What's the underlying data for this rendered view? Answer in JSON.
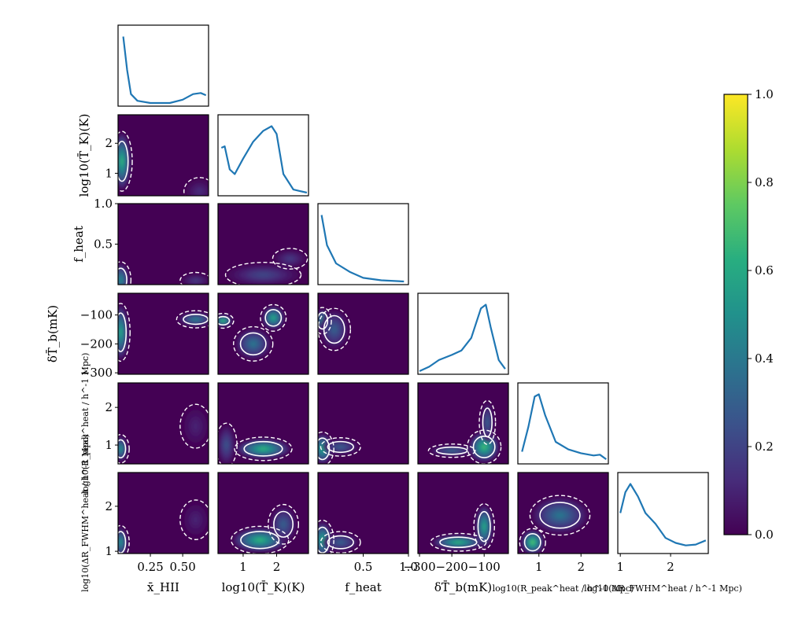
{
  "chart_data": {
    "type": "corner",
    "parameters": [
      {
        "key": "xHII",
        "label": "x̄_HII",
        "range": [
          0,
          0.7
        ],
        "ticks": [
          0.25,
          0.5
        ],
        "tick_labels": [
          "0.25",
          "0.50"
        ]
      },
      {
        "key": "TK",
        "label": "log10(T̄_K)(K)",
        "range": [
          0.25,
          2.95
        ],
        "ticks": [
          1,
          2
        ],
        "tick_labels": [
          "1",
          "2"
        ]
      },
      {
        "key": "fheat",
        "label": "f_heat",
        "range": [
          0,
          1
        ],
        "ticks": [
          0.5,
          1.0
        ],
        "tick_labels": [
          "0.5",
          "1.0"
        ]
      },
      {
        "key": "dTb",
        "label": "δT̄_b(mK)",
        "range": [
          -305,
          -25
        ],
        "ticks": [
          -300,
          -200,
          -100
        ],
        "tick_labels": [
          "−300",
          "−200",
          "−100"
        ]
      },
      {
        "key": "Rpeak",
        "label": "log10(R_peak^heat / h^-1 Mpc)",
        "range": [
          0.5,
          2.65
        ],
        "ticks": [
          1,
          2
        ],
        "tick_labels": [
          "1",
          "2"
        ]
      },
      {
        "key": "dRfwhm",
        "label": "log10(ΔR_FWHM^heat / h^-1 Mpc)",
        "range": [
          0.95,
          2.75
        ],
        "ticks": [
          1,
          2
        ],
        "tick_labels": [
          "1",
          "2"
        ]
      }
    ],
    "y_axis_labels": {
      "TK": "log10(T̄_K)(K)",
      "fheat": "f_heat",
      "dTb": "δT̄_b(mK)",
      "Rpeak": "log10(R_peak^heat / h^-1 Mpc)",
      "dRfwhm": "log10(ΔR_FWHM^heat / h^-1 Mpc)"
    },
    "y_tick_labels": {
      "TK": [
        "1",
        "2"
      ],
      "fheat": [
        "0.5",
        "1.0"
      ],
      "dTb": [
        "−300",
        "−200",
        "−100"
      ],
      "Rpeak": [
        "1",
        "2"
      ],
      "dRfwhm": [
        "1",
        "2"
      ]
    },
    "marginals": {
      "xHII": [
        [
          0.04,
          0.6
        ],
        [
          0.07,
          0.3
        ],
        [
          0.1,
          0.08
        ],
        [
          0.15,
          0.02
        ],
        [
          0.25,
          0.0
        ],
        [
          0.4,
          0.0
        ],
        [
          0.5,
          0.03
        ],
        [
          0.58,
          0.08
        ],
        [
          0.64,
          0.09
        ],
        [
          0.68,
          0.07
        ]
      ],
      "TK": [
        [
          0.35,
          0.29
        ],
        [
          0.45,
          0.3
        ],
        [
          0.6,
          0.15
        ],
        [
          0.75,
          0.12
        ],
        [
          1.0,
          0.22
        ],
        [
          1.3,
          0.33
        ],
        [
          1.6,
          0.4
        ],
        [
          1.85,
          0.43
        ],
        [
          2.0,
          0.38
        ],
        [
          2.2,
          0.12
        ],
        [
          2.5,
          0.02
        ],
        [
          2.9,
          0.0
        ]
      ],
      "fheat": [
        [
          0.04,
          0.55
        ],
        [
          0.1,
          0.3
        ],
        [
          0.2,
          0.15
        ],
        [
          0.35,
          0.08
        ],
        [
          0.5,
          0.03
        ],
        [
          0.7,
          0.01
        ],
        [
          0.95,
          0.0
        ]
      ],
      "dTb": [
        [
          -300,
          0.0
        ],
        [
          -270,
          0.06
        ],
        [
          -240,
          0.15
        ],
        [
          -200,
          0.22
        ],
        [
          -170,
          0.28
        ],
        [
          -140,
          0.45
        ],
        [
          -110,
          0.85
        ],
        [
          -95,
          0.9
        ],
        [
          -80,
          0.6
        ],
        [
          -55,
          0.15
        ],
        [
          -35,
          0.03
        ]
      ],
      "Rpeak": [
        [
          0.6,
          0.12
        ],
        [
          0.75,
          0.45
        ],
        [
          0.9,
          0.85
        ],
        [
          1.0,
          0.88
        ],
        [
          1.15,
          0.6
        ],
        [
          1.4,
          0.25
        ],
        [
          1.7,
          0.15
        ],
        [
          2.0,
          0.1
        ],
        [
          2.3,
          0.07
        ],
        [
          2.45,
          0.08
        ],
        [
          2.6,
          0.02
        ]
      ],
      "dRfwhm": [
        [
          1.0,
          0.45
        ],
        [
          1.1,
          0.7
        ],
        [
          1.2,
          0.8
        ],
        [
          1.35,
          0.65
        ],
        [
          1.5,
          0.45
        ],
        [
          1.7,
          0.32
        ],
        [
          1.9,
          0.15
        ],
        [
          2.1,
          0.09
        ],
        [
          2.3,
          0.06
        ],
        [
          2.5,
          0.07
        ],
        [
          2.7,
          0.12
        ]
      ]
    },
    "joint_peaks": [
      {
        "x": "xHII",
        "y": "TK",
        "blobs": [
          {
            "cx": 0.03,
            "cy": 1.4,
            "sx": 0.05,
            "sy": 0.7,
            "a": 0.75
          },
          {
            "cx": 0.63,
            "cy": 0.4,
            "sx": 0.08,
            "sy": 0.3,
            "a": 0.15
          }
        ]
      },
      {
        "x": "xHII",
        "y": "fheat",
        "blobs": [
          {
            "cx": 0.02,
            "cy": 0.06,
            "sx": 0.05,
            "sy": 0.15,
            "a": 0.55
          },
          {
            "cx": 0.6,
            "cy": 0.05,
            "sx": 0.08,
            "sy": 0.06,
            "a": 0.2
          }
        ]
      },
      {
        "x": "TK",
        "y": "fheat",
        "blobs": [
          {
            "cx": 1.6,
            "cy": 0.12,
            "sx": 0.8,
            "sy": 0.1,
            "a": 0.25
          },
          {
            "cx": 2.4,
            "cy": 0.32,
            "sx": 0.35,
            "sy": 0.08,
            "a": 0.2
          }
        ]
      },
      {
        "x": "fheat",
        "y": "fheat",
        "blobs": []
      },
      {
        "x": "xHII",
        "y": "dTb",
        "blobs": [
          {
            "cx": 0.02,
            "cy": -160,
            "sx": 0.045,
            "sy": 70,
            "a": 0.7
          },
          {
            "cx": 0.6,
            "cy": -115,
            "sx": 0.1,
            "sy": 18,
            "a": 0.5
          }
        ]
      },
      {
        "x": "TK",
        "y": "dTb",
        "blobs": [
          {
            "cx": 0.4,
            "cy": -120,
            "sx": 0.2,
            "sy": 15,
            "a": 0.8
          },
          {
            "cx": 1.9,
            "cy": -110,
            "sx": 0.25,
            "sy": 30,
            "a": 0.7
          },
          {
            "cx": 1.3,
            "cy": -200,
            "sx": 0.4,
            "sy": 40,
            "a": 0.45
          }
        ]
      },
      {
        "x": "fheat",
        "y": "dTb",
        "blobs": [
          {
            "cx": 0.05,
            "cy": -120,
            "sx": 0.06,
            "sy": 30,
            "a": 0.6
          },
          {
            "cx": 0.18,
            "cy": -150,
            "sx": 0.12,
            "sy": 50,
            "a": 0.35
          }
        ]
      },
      {
        "x": "xHII",
        "y": "Rpeak",
        "blobs": [
          {
            "cx": 0.02,
            "cy": 0.9,
            "sx": 0.04,
            "sy": 0.25,
            "a": 0.6
          },
          {
            "cx": 0.6,
            "cy": 1.5,
            "sx": 0.08,
            "sy": 0.4,
            "a": 0.12
          }
        ]
      },
      {
        "x": "TK",
        "y": "Rpeak",
        "blobs": [
          {
            "cx": 1.6,
            "cy": 0.9,
            "sx": 0.6,
            "sy": 0.2,
            "a": 0.75
          },
          {
            "cx": 0.5,
            "cy": 1.0,
            "sx": 0.2,
            "sy": 0.4,
            "a": 0.3
          }
        ]
      },
      {
        "x": "fheat",
        "y": "Rpeak",
        "blobs": [
          {
            "cx": 0.05,
            "cy": 0.9,
            "sx": 0.08,
            "sy": 0.3,
            "a": 0.7
          },
          {
            "cx": 0.25,
            "cy": 0.95,
            "sx": 0.15,
            "sy": 0.15,
            "a": 0.35
          }
        ]
      },
      {
        "x": "dTb",
        "y": "Rpeak",
        "blobs": [
          {
            "cx": -100,
            "cy": 0.95,
            "sx": 35,
            "sy": 0.3,
            "a": 0.8
          },
          {
            "cx": -200,
            "cy": 0.85,
            "sx": 50,
            "sy": 0.1,
            "a": 0.4
          },
          {
            "cx": -90,
            "cy": 1.6,
            "sx": 15,
            "sy": 0.4,
            "a": 0.35
          }
        ]
      },
      {
        "x": "xHII",
        "y": "dRfwhm",
        "blobs": [
          {
            "cx": 0.02,
            "cy": 1.2,
            "sx": 0.04,
            "sy": 0.25,
            "a": 0.6
          },
          {
            "cx": 0.6,
            "cy": 1.7,
            "sx": 0.08,
            "sy": 0.3,
            "a": 0.12
          }
        ]
      },
      {
        "x": "TK",
        "y": "dRfwhm",
        "blobs": [
          {
            "cx": 1.5,
            "cy": 1.25,
            "sx": 0.6,
            "sy": 0.2,
            "a": 0.75
          },
          {
            "cx": 2.2,
            "cy": 1.6,
            "sx": 0.3,
            "sy": 0.3,
            "a": 0.35
          }
        ]
      },
      {
        "x": "fheat",
        "y": "dRfwhm",
        "blobs": [
          {
            "cx": 0.05,
            "cy": 1.25,
            "sx": 0.08,
            "sy": 0.3,
            "a": 0.7
          },
          {
            "cx": 0.25,
            "cy": 1.2,
            "sx": 0.15,
            "sy": 0.15,
            "a": 0.35
          }
        ]
      },
      {
        "x": "dTb",
        "y": "dRfwhm",
        "blobs": [
          {
            "cx": -180,
            "cy": 1.2,
            "sx": 60,
            "sy": 0.12,
            "a": 0.75
          },
          {
            "cx": -100,
            "cy": 1.55,
            "sx": 20,
            "sy": 0.35,
            "a": 0.7
          }
        ]
      },
      {
        "x": "Rpeak",
        "y": "dRfwhm",
        "blobs": [
          {
            "cx": 0.85,
            "cy": 1.2,
            "sx": 0.2,
            "sy": 0.2,
            "a": 0.85
          },
          {
            "cx": 1.5,
            "cy": 1.8,
            "sx": 0.5,
            "sy": 0.3,
            "a": 0.45
          }
        ]
      }
    ],
    "colorbar": {
      "colormap": "viridis",
      "range": [
        0,
        1
      ],
      "ticks": [
        0.0,
        0.2,
        0.4,
        0.6,
        0.8,
        1.0
      ],
      "tick_labels": [
        "0.0",
        "0.2",
        "0.4",
        "0.6",
        "0.8",
        "1.0"
      ]
    },
    "colors": {
      "line": "#1f77b4",
      "contour": "#ffffff",
      "background": "#440154"
    }
  }
}
